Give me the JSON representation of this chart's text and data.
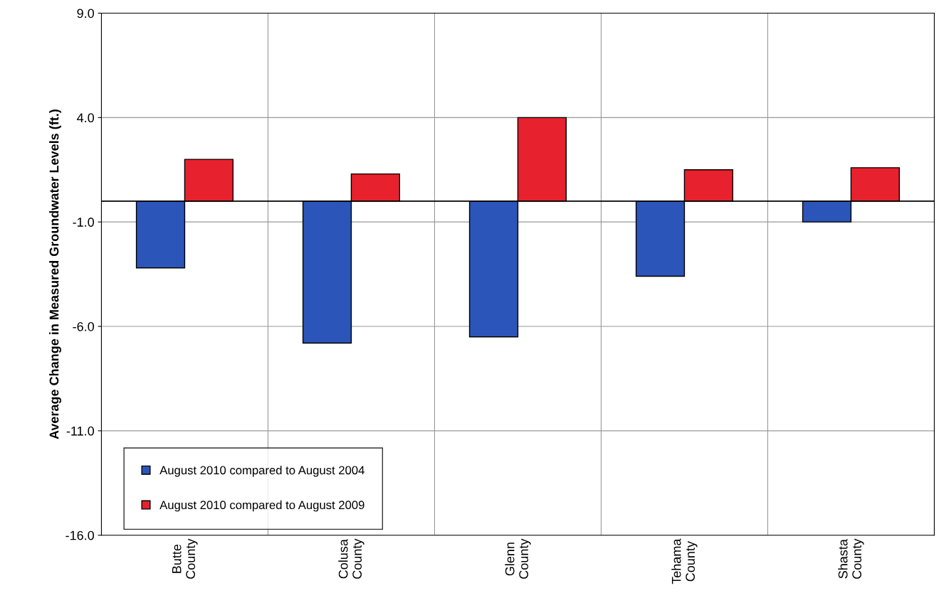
{
  "chart_data": {
    "type": "bar",
    "ylabel": "Average Change in Measured Groundwater Levels (ft.)",
    "categories": [
      "Butte\nCounty",
      "Colusa\nCounty",
      "Glenn\nCounty",
      "Tehama\nCounty",
      "Shasta\nCounty"
    ],
    "series": [
      {
        "name": "August 2010 compared to August 2004",
        "color": "#2b55b8",
        "values": [
          -3.2,
          -6.8,
          -6.5,
          -3.6,
          -1.0
        ]
      },
      {
        "name": "August 2010 compared to August 2009",
        "color": "#e8212e",
        "values": [
          2.0,
          1.3,
          4.0,
          1.5,
          1.6
        ]
      }
    ],
    "ylim": [
      -16.0,
      9.0
    ],
    "yticks": [
      {
        "value": -16,
        "label": "-16.0"
      },
      {
        "value": -11,
        "label": "-11.0"
      },
      {
        "value": -6,
        "label": "-6.0"
      },
      {
        "value": -1,
        "label": "-1.0"
      },
      {
        "value": 4,
        "label": "4.0"
      },
      {
        "value": 9,
        "label": "9.0"
      }
    ],
    "ref_lines": [
      {
        "axis": "y",
        "value": 0,
        "color": "#000000"
      }
    ],
    "grid": true,
    "legend": "bottom left"
  }
}
